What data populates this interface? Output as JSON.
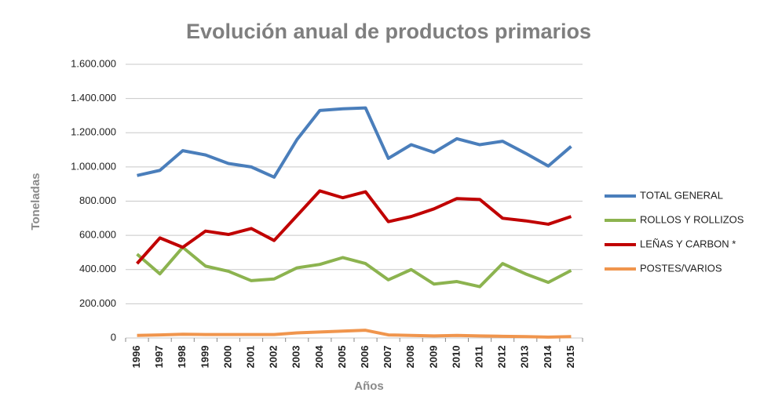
{
  "chart_data": {
    "type": "line",
    "title": "Evolución anual de productos primarios",
    "x_label": "Años",
    "y_label": "Toneladas",
    "categories": [
      "1996",
      "1997",
      "1998",
      "1999",
      "2000",
      "2001",
      "2002",
      "2003",
      "2004",
      "2005",
      "2006",
      "2007",
      "2008",
      "2009",
      "2010",
      "2011",
      "2012",
      "2013",
      "2014",
      "2015"
    ],
    "series": [
      {
        "name": "TOTAL GENERAL",
        "color": "#4a7ebb",
        "values": [
          950000,
          980000,
          1095000,
          1070000,
          1020000,
          1000000,
          940000,
          1160000,
          1330000,
          1340000,
          1345000,
          1050000,
          1130000,
          1085000,
          1165000,
          1130000,
          1150000,
          1080000,
          1005000,
          1120000
        ]
      },
      {
        "name": "ROLLOS Y ROLLIZOS",
        "color": "#8cb34f",
        "values": [
          490000,
          375000,
          530000,
          420000,
          390000,
          335000,
          345000,
          410000,
          430000,
          470000,
          435000,
          340000,
          400000,
          315000,
          330000,
          300000,
          435000,
          375000,
          325000,
          395000
        ]
      },
      {
        "name": "LEÑAS Y CARBON *",
        "color": "#c00000",
        "values": [
          435000,
          585000,
          530000,
          625000,
          605000,
          640000,
          570000,
          715000,
          860000,
          820000,
          855000,
          680000,
          710000,
          755000,
          815000,
          810000,
          700000,
          685000,
          665000,
          710000
        ]
      },
      {
        "name": "POSTES/VARIOS",
        "color": "#f0954d",
        "values": [
          15000,
          18000,
          22000,
          20000,
          20000,
          20000,
          20000,
          30000,
          35000,
          40000,
          45000,
          18000,
          15000,
          12000,
          15000,
          12000,
          10000,
          8000,
          5000,
          8000
        ]
      }
    ],
    "ylim": [
      0,
      1600000
    ],
    "yticks": [
      0,
      {
        "value": 200000,
        "label": "200.000"
      },
      {
        "value": 400000,
        "label": "400.000"
      },
      {
        "value": 600000,
        "label": "600.000"
      },
      {
        "value": 800000,
        "label": "800.000"
      },
      {
        "value": 1000000,
        "label": "1.000.000"
      },
      {
        "value": 1200000,
        "label": "1.200.000"
      },
      {
        "value": 1400000,
        "label": "1.400.000"
      },
      {
        "value": 1600000,
        "label": "1.600.000"
      }
    ],
    "grid": true,
    "legend": "right"
  }
}
